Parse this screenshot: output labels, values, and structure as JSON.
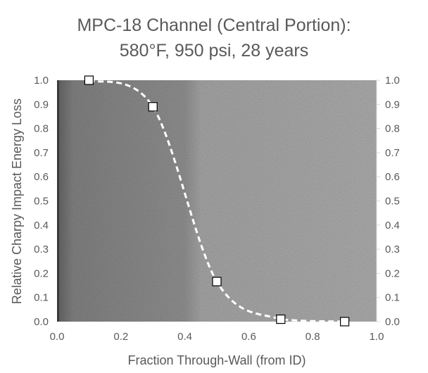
{
  "chart_data": {
    "type": "line",
    "title": [
      "MPC-18 Channel (Central Portion):",
      "580°F, 950 psi, 28 years"
    ],
    "xlabel": "Fraction Through-Wall (from ID)",
    "ylabel": "Relative Charpy Impact Energy Loss",
    "xlim": [
      0.0,
      1.0
    ],
    "ylim": [
      0.0,
      1.0
    ],
    "x_ticks": [
      "0.0",
      "0.2",
      "0.4",
      "0.6",
      "0.8",
      "1.0"
    ],
    "y_ticks": [
      "0.0",
      "0.1",
      "0.2",
      "0.3",
      "0.4",
      "0.5",
      "0.6",
      "0.7",
      "0.8",
      "0.9",
      "1.0"
    ],
    "secondary_y_ticks": [
      "0.0",
      "0.1",
      "0.2",
      "0.3",
      "0.4",
      "0.5",
      "0.6",
      "0.7",
      "0.8",
      "0.9",
      "1.0"
    ],
    "grid": false,
    "background": "micrograph image",
    "series": [
      {
        "name": "Charpy energy loss",
        "style": "dashed smooth line with square markers",
        "color": "#ffffff",
        "x": [
          0.1,
          0.3,
          0.5,
          0.7,
          0.9
        ],
        "y": [
          1.0,
          0.89,
          0.166,
          0.01,
          0.0
        ]
      }
    ]
  }
}
